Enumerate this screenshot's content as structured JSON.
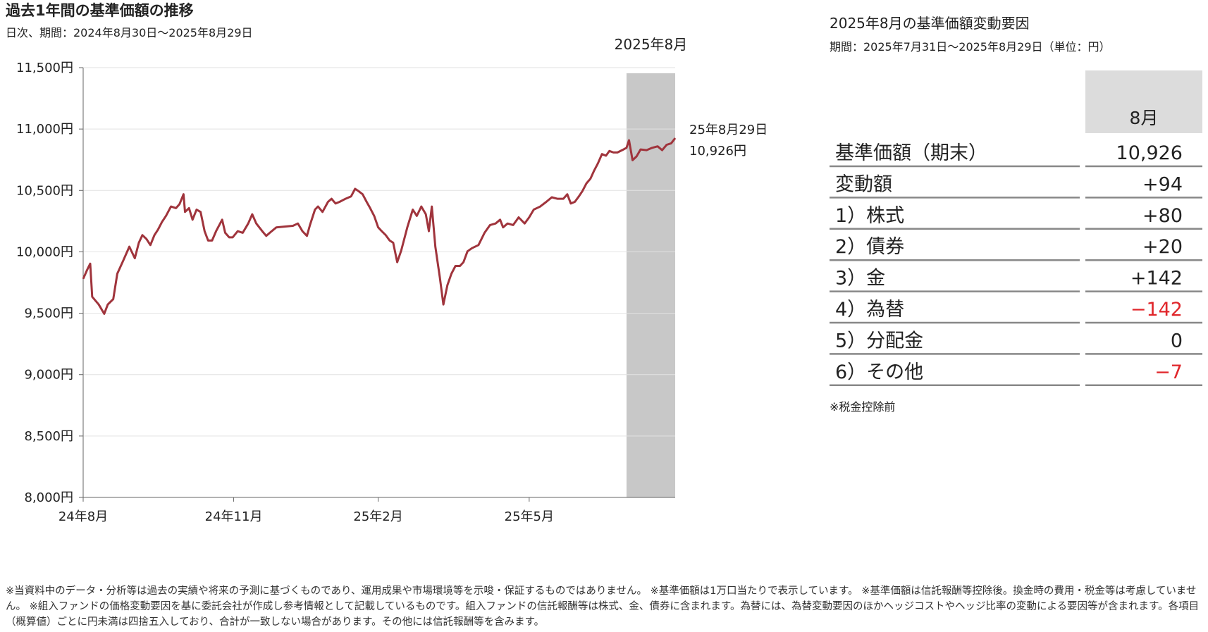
{
  "chart_data": {
    "type": "line",
    "title": "過去1年間の基準価額の推移",
    "subtitle": "日次、期間：2024年8月30日～2025年8月29日",
    "x": [
      0,
      0.08,
      0.14,
      0.18,
      0.31,
      0.42,
      0.49,
      0.6,
      0.68,
      0.8,
      0.92,
      1.03,
      1.11,
      1.18,
      1.26,
      1.34,
      1.42,
      1.49,
      1.57,
      1.65,
      1.75,
      1.85,
      1.92,
      2,
      2.03,
      2.11,
      2.18,
      2.26,
      2.34,
      2.42,
      2.49,
      2.57,
      2.65,
      2.77,
      2.83,
      2.91,
      2.98,
      3.08,
      3.18,
      3.29,
      3.37,
      3.45,
      3.57,
      3.65,
      3.72,
      3.85,
      4.03,
      4.18,
      4.28,
      4.37,
      4.46,
      4.52,
      4.62,
      4.68,
      4.77,
      4.88,
      4.95,
      5.03,
      5.11,
      5.23,
      5.34,
      5.42,
      5.49,
      5.57,
      5.65,
      5.72,
      5.8,
      5.88,
      5.95,
      6.03,
      6.11,
      6.18,
      6.26,
      6.34,
      6.46,
      6.57,
      6.65,
      6.74,
      6.83,
      6.89,
      6.95,
      7.02,
      7.11,
      7.18,
      7.26,
      7.34,
      7.42,
      7.51,
      7.58,
      7.66,
      7.75,
      7.88,
      8,
      8.11,
      8.22,
      8.31,
      8.37,
      8.46,
      8.57,
      8.68,
      8.8,
      8.89,
      8.98,
      9.11,
      9.23,
      9.34,
      9.45,
      9.57,
      9.65,
      9.72,
      9.8,
      9.88,
      9.95,
      10.03,
      10.11,
      10.18,
      10.26,
      10.34,
      10.42,
      10.49,
      10.57,
      10.65,
      10.77,
      10.83,
      10.88,
      10.95,
      11.03,
      11.11,
      11.23,
      11.34,
      11.45,
      11.54,
      11.63,
      11.72,
      11.8
    ],
    "series": [
      {
        "color": "#a0343c",
        "values": [
          9780,
          9854,
          9904,
          9634,
          9571,
          9495,
          9571,
          9615,
          9822,
          9929,
          10042,
          9948,
          10074,
          10136,
          10105,
          10055,
          10136,
          10180,
          10243,
          10293,
          10369,
          10356,
          10388,
          10469,
          10325,
          10356,
          10262,
          10344,
          10325,
          10168,
          10092,
          10092,
          10168,
          10262,
          10155,
          10118,
          10118,
          10168,
          10155,
          10231,
          10306,
          10231,
          10168,
          10130,
          10155,
          10199,
          10206,
          10212,
          10231,
          10168,
          10130,
          10218,
          10344,
          10369,
          10325,
          10407,
          10432,
          10394,
          10407,
          10432,
          10451,
          10513,
          10494,
          10469,
          10407,
          10356,
          10293,
          10199,
          10168,
          10136,
          10092,
          10074,
          9916,
          10011,
          10199,
          10344,
          10293,
          10369,
          10306,
          10168,
          10369,
          10042,
          9791,
          9571,
          9728,
          9822,
          9885,
          9885,
          9916,
          10004,
          10030,
          10055,
          10155,
          10218,
          10231,
          10262,
          10199,
          10231,
          10218,
          10281,
          10231,
          10281,
          10344,
          10369,
          10407,
          10444,
          10432,
          10432,
          10469,
          10394,
          10407,
          10451,
          10494,
          10557,
          10595,
          10658,
          10721,
          10796,
          10783,
          10821,
          10809,
          10809,
          10834,
          10847,
          10909,
          10746,
          10777,
          10834,
          10828,
          10847,
          10859,
          10828,
          10872,
          10884,
          10926
        ]
      }
    ],
    "xlim": [
      0,
      11.8
    ],
    "xticks": [
      {
        "value": 0,
        "label": "24年8月"
      },
      {
        "value": 3,
        "label": "24年11月"
      },
      {
        "value": 5.88,
        "label": "25年2月"
      },
      {
        "value": 8.89,
        "label": "25年5月"
      }
    ],
    "ylim": [
      8000,
      11500
    ],
    "yticks": [
      {
        "value": 8000,
        "label": "8,000円"
      },
      {
        "value": 8500,
        "label": "8,500円"
      },
      {
        "value": 9000,
        "label": "9,000円"
      },
      {
        "value": 9500,
        "label": "9,500円"
      },
      {
        "value": 10000,
        "label": "10,000円"
      },
      {
        "value": 10500,
        "label": "10,500円"
      },
      {
        "value": 11000,
        "label": "11,000円"
      },
      {
        "value": 11500,
        "label": "11,500円"
      }
    ],
    "grid": true,
    "highlight": {
      "label": "2025年8月",
      "xlim": [
        10.83,
        11.8
      ],
      "color": "#c8c8c8"
    },
    "annotation": {
      "date": "25年8月29日",
      "value_label": "10,926円"
    }
  },
  "table_panel": {
    "title": "2025年8月の基準価額変動要因",
    "period": "期間：2025年7月31日～2025年8月29日（単位：円）",
    "column_header": "8月",
    "negative_color": "#e0262b",
    "rows": [
      [
        "基準価額（期末）",
        "10,926"
      ],
      [
        "変動額",
        "+94"
      ],
      [
        "1）株式",
        "+80"
      ],
      [
        "2）債券",
        "+20"
      ],
      [
        "3）金",
        "+142"
      ],
      [
        "4）為替",
        "−142"
      ],
      [
        "5）分配金",
        "0"
      ],
      [
        "6）その他",
        "−7"
      ]
    ],
    "note": "※税金控除前"
  },
  "footnote": "※当資料中のデータ・分析等は過去の実績や将来の予測に基づくものであり、運用成果や市場環境等を示唆・保証するものではありません。 ※基準価額は1万口当たりで表示しています。 ※基準価額は信託報酬等控除後。換金時の費用・税金等は考慮していません。 ※組入ファンドの価格変動要因を基に委託会社が作成し参考情報として記載しているものです。組入ファンドの信託報酬等は株式、金、債券に含まれます。為替には、為替変動要因のほかヘッジコストやヘッジ比率の変動による要因等が含まれます。各項目（概算値）ごとに円未満は四捨五入しており、合計が一致しない場合があります。その他には信託報酬等を含みます。"
}
